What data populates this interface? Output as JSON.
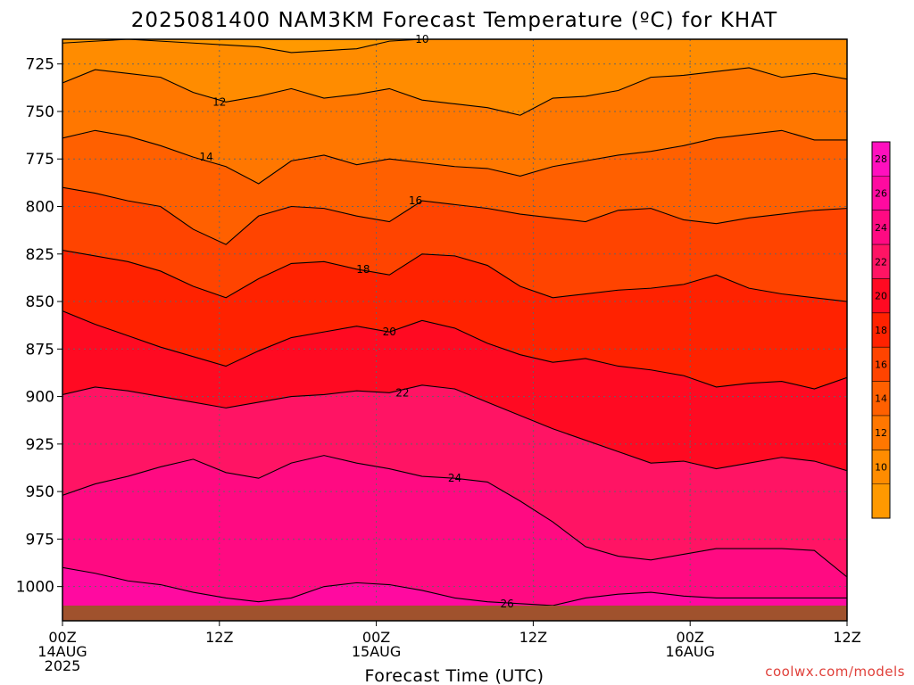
{
  "title": "2025081400 NAM3KM Forecast Temperature (ºC) for KHAT",
  "credit": "coolwx.com/models",
  "chart_data": {
    "type": "heatmap",
    "title": "2025081400 NAM3KM Forecast Temperature (ºC) for KHAT",
    "xlabel": "Forecast Time (UTC)",
    "ylabel": "",
    "x_ticks": [
      {
        "h": 0,
        "label": "00Z",
        "sub": [
          "14AUG",
          "2025"
        ]
      },
      {
        "h": 12,
        "label": "12Z",
        "sub": []
      },
      {
        "h": 24,
        "label": "00Z",
        "sub": [
          "15AUG"
        ]
      },
      {
        "h": 36,
        "label": "12Z",
        "sub": []
      },
      {
        "h": 48,
        "label": "00Z",
        "sub": [
          "16AUG"
        ]
      },
      {
        "h": 60,
        "label": "12Z",
        "sub": []
      }
    ],
    "xlim": [
      0,
      60
    ],
    "y_ticks": [
      725,
      750,
      775,
      800,
      825,
      850,
      875,
      900,
      925,
      950,
      975,
      1000
    ],
    "ylim": [
      712,
      1018
    ],
    "y_reversed": true,
    "grid": true,
    "surface_pressure_hpa": 1010,
    "colorbar": {
      "ticks": [
        10,
        12,
        14,
        16,
        18,
        20,
        22,
        24,
        26,
        28
      ],
      "bins": [
        {
          "range": [
            8,
            10
          ],
          "color": "#FF9900"
        },
        {
          "range": [
            10,
            12
          ],
          "color": "#FF8C00"
        },
        {
          "range": [
            12,
            14
          ],
          "color": "#FF7700"
        },
        {
          "range": [
            14,
            16
          ],
          "color": "#FF6000"
        },
        {
          "range": [
            16,
            18
          ],
          "color": "#FF4400"
        },
        {
          "range": [
            18,
            20
          ],
          "color": "#FF2200"
        },
        {
          "range": [
            20,
            22
          ],
          "color": "#FF0A22"
        },
        {
          "range": [
            22,
            24
          ],
          "color": "#FF1464"
        },
        {
          "range": [
            24,
            26
          ],
          "color": "#FF0A82"
        },
        {
          "range": [
            26,
            28
          ],
          "color": "#FF0AA0"
        },
        {
          "range": [
            28,
            30
          ],
          "color": "#FF10BE"
        }
      ]
    },
    "isotherms": [
      {
        "value": 10,
        "pressure": [
          714,
          713,
          712,
          713,
          714,
          715,
          716,
          719,
          718,
          717,
          713,
          712,
          712,
          712,
          712,
          712,
          712,
          712,
          712,
          712,
          712,
          712,
          712,
          712,
          712
        ],
        "label_hour": 27.5
      },
      {
        "value": 12,
        "pressure": [
          735,
          728,
          730,
          732,
          740,
          745,
          742,
          738,
          743,
          741,
          738,
          744,
          746,
          748,
          752,
          743,
          742,
          739,
          732,
          731,
          729,
          727,
          732,
          730,
          733
        ],
        "label_hour": 12
      },
      {
        "value": 14,
        "pressure": [
          764,
          760,
          763,
          768,
          774,
          779,
          788,
          776,
          773,
          778,
          775,
          777,
          779,
          780,
          784,
          779,
          776,
          773,
          771,
          768,
          764,
          762,
          760,
          765,
          765
        ],
        "label_hour": 11
      },
      {
        "value": 16,
        "pressure": [
          790,
          793,
          797,
          800,
          812,
          820,
          805,
          800,
          801,
          805,
          808,
          797,
          799,
          801,
          804,
          806,
          808,
          802,
          801,
          807,
          809,
          806,
          804,
          802,
          801
        ],
        "label_hour": 27
      },
      {
        "value": 18,
        "pressure": [
          823,
          826,
          829,
          834,
          842,
          848,
          838,
          830,
          829,
          833,
          836,
          825,
          826,
          831,
          842,
          848,
          846,
          844,
          843,
          841,
          836,
          843,
          846,
          848,
          850
        ],
        "label_hour": 23
      },
      {
        "value": 20,
        "pressure": [
          855,
          862,
          868,
          874,
          879,
          884,
          876,
          869,
          866,
          863,
          866,
          860,
          864,
          872,
          878,
          882,
          880,
          884,
          886,
          889,
          895,
          893,
          892,
          896,
          890
        ],
        "label_hour": 25
      },
      {
        "value": 22,
        "pressure": [
          899,
          895,
          897,
          900,
          903,
          906,
          903,
          900,
          899,
          897,
          898,
          894,
          896,
          903,
          910,
          917,
          923,
          929,
          935,
          934,
          938,
          935,
          932,
          934,
          939
        ],
        "label_hour": 26
      },
      {
        "value": 24,
        "pressure": [
          952,
          946,
          942,
          937,
          933,
          940,
          943,
          935,
          931,
          935,
          938,
          942,
          943,
          945,
          955,
          966,
          979,
          984,
          986,
          983,
          980,
          980,
          980,
          981,
          995
        ],
        "label_hour": 30
      },
      {
        "value": 26,
        "pressure": [
          990,
          993,
          997,
          999,
          1003,
          1006,
          1008,
          1006,
          1000,
          998,
          999,
          1002,
          1006,
          1008,
          1009,
          1010,
          1006,
          1004,
          1003,
          1005,
          1006,
          1006,
          1006,
          1006,
          1006
        ],
        "label_hour": 34
      }
    ]
  }
}
